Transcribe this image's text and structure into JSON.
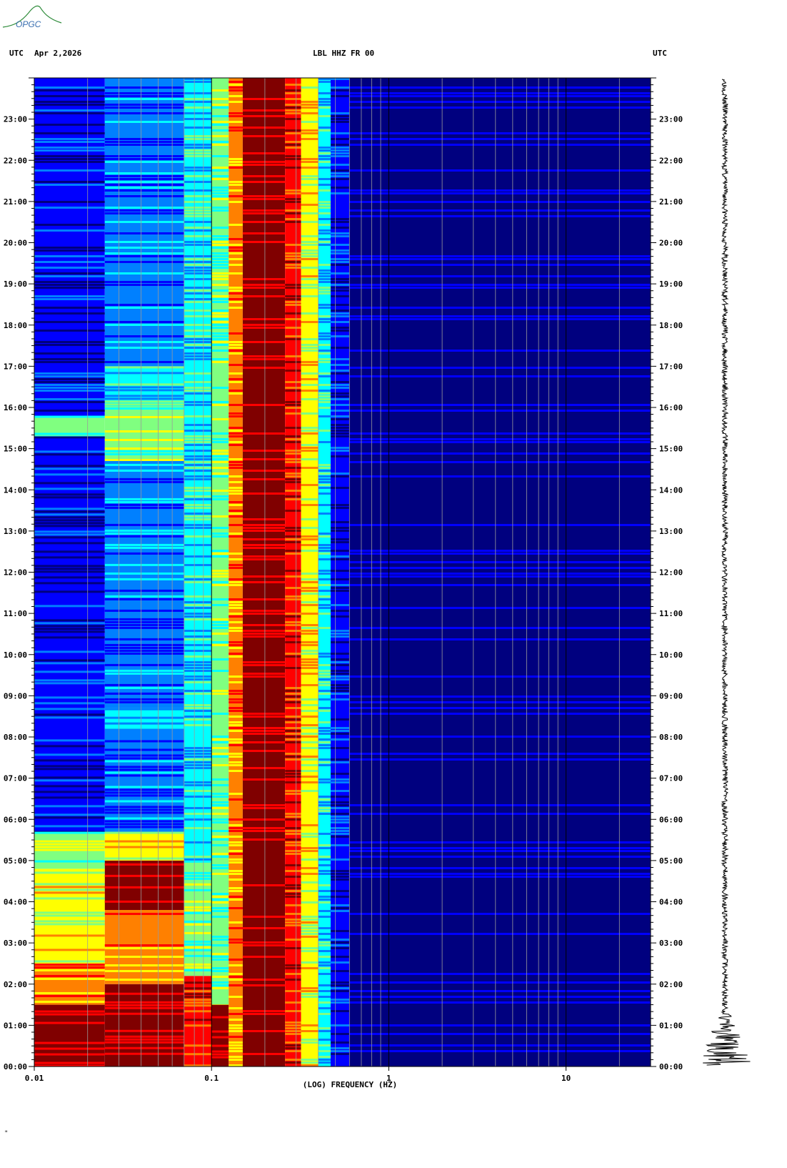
{
  "header": {
    "left_utc": "UTC",
    "date": "Apr 2,2026",
    "station": "LBL HHZ FR 00",
    "right_utc": "UTC"
  },
  "logo": {
    "text": "OPGC"
  },
  "footer_mark": "\"",
  "chart_data": {
    "type": "heatmap",
    "title": "LBL HHZ FR 00",
    "xlabel": "(LOG) FREQUENCY (HZ)",
    "ylabel": "",
    "x_scale": "log",
    "xlim": [
      0.01,
      30
    ],
    "x_ticks": [
      {
        "value": 0.01,
        "label": "0.01"
      },
      {
        "value": 0.1,
        "label": "0.1"
      },
      {
        "value": 1,
        "label": "1"
      },
      {
        "value": 10,
        "label": "10"
      }
    ],
    "y_range_hours": [
      0,
      24
    ],
    "y_ticks": [
      "00:00",
      "01:00",
      "02:00",
      "03:00",
      "04:00",
      "05:00",
      "06:00",
      "07:00",
      "08:00",
      "09:00",
      "10:00",
      "11:00",
      "12:00",
      "13:00",
      "14:00",
      "15:00",
      "16:00",
      "17:00",
      "18:00",
      "19:00",
      "20:00",
      "21:00",
      "22:00",
      "23:00"
    ],
    "colormap": [
      "#00007f",
      "#0000ff",
      "#0080ff",
      "#00ffff",
      "#80ff80",
      "#ffff00",
      "#ff8000",
      "#ff0000",
      "#800000"
    ],
    "bands": [
      {
        "fmin": 0.01,
        "fmax": 0.025,
        "segments": [
          {
            "h0": 0,
            "h1": 1.5,
            "level": 8
          },
          {
            "h0": 1.5,
            "h1": 2.5,
            "level": 6
          },
          {
            "h0": 2.5,
            "h1": 4.8,
            "level": 5
          },
          {
            "h0": 4.8,
            "h1": 5.7,
            "level": 4
          },
          {
            "h0": 5.7,
            "h1": 15.3,
            "level": 1
          },
          {
            "h0": 15.3,
            "h1": 15.8,
            "level": 4
          },
          {
            "h0": 15.8,
            "h1": 24,
            "level": 1
          }
        ]
      },
      {
        "fmin": 0.025,
        "fmax": 0.07,
        "segments": [
          {
            "h0": 0,
            "h1": 2.0,
            "level": 8
          },
          {
            "h0": 2.0,
            "h1": 3.8,
            "level": 6
          },
          {
            "h0": 3.8,
            "h1": 5.0,
            "level": 8
          },
          {
            "h0": 5.0,
            "h1": 5.7,
            "level": 5
          },
          {
            "h0": 5.7,
            "h1": 8.2,
            "level": 2
          },
          {
            "h0": 8.2,
            "h1": 8.7,
            "level": 3
          },
          {
            "h0": 8.7,
            "h1": 14.7,
            "level": 2
          },
          {
            "h0": 14.7,
            "h1": 16.0,
            "level": 4
          },
          {
            "h0": 16.0,
            "h1": 17.0,
            "level": 3
          },
          {
            "h0": 17.0,
            "h1": 24,
            "level": 2
          }
        ]
      },
      {
        "fmin": 0.07,
        "fmax": 0.1,
        "segments": [
          {
            "h0": 0,
            "h1": 2.2,
            "level": 7
          },
          {
            "h0": 2.2,
            "h1": 5.0,
            "level": 4
          },
          {
            "h0": 5.0,
            "h1": 24,
            "level": 3
          }
        ]
      },
      {
        "fmin": 0.1,
        "fmax": 0.125,
        "segments": [
          {
            "h0": 0,
            "h1": 1.5,
            "level": 8
          },
          {
            "h0": 1.5,
            "h1": 24,
            "level": 4
          }
        ]
      },
      {
        "fmin": 0.125,
        "fmax": 0.15,
        "segments": [
          {
            "h0": 0,
            "h1": 24,
            "level": 6
          }
        ]
      },
      {
        "fmin": 0.15,
        "fmax": 0.26,
        "segments": [
          {
            "h0": 0,
            "h1": 24,
            "level": 8
          }
        ]
      },
      {
        "fmin": 0.26,
        "fmax": 0.32,
        "segments": [
          {
            "h0": 0,
            "h1": 24,
            "level": 7
          }
        ]
      },
      {
        "fmin": 0.32,
        "fmax": 0.4,
        "segments": [
          {
            "h0": 0,
            "h1": 24,
            "level": 5
          }
        ]
      },
      {
        "fmin": 0.4,
        "fmax": 0.47,
        "segments": [
          {
            "h0": 0,
            "h1": 24,
            "level": 3
          }
        ]
      },
      {
        "fmin": 0.47,
        "fmax": 0.6,
        "segments": [
          {
            "h0": 0,
            "h1": 24,
            "level": 1
          }
        ]
      },
      {
        "fmin": 0.6,
        "fmax": 30,
        "segments": [
          {
            "h0": 0,
            "h1": 24,
            "level": 0
          }
        ]
      }
    ],
    "grid": true,
    "seismogram": "trace on right, amplitude increasing toward 00:00"
  }
}
